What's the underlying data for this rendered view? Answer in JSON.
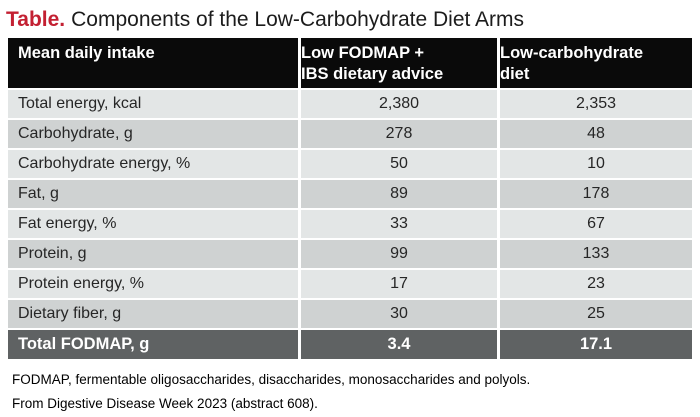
{
  "title": {
    "prefix": "Table.",
    "text": "Components of the Low-Carbohydrate Diet Arms"
  },
  "header": {
    "col1": "Mean daily intake",
    "col2_line1": "Low FODMAP +",
    "col2_line2": "IBS dietary advice",
    "col3_line1": "Low-carbohydrate",
    "col3_line2": "diet"
  },
  "chart_data": {
    "type": "table",
    "title": "Table. Components of the Low-Carbohydrate Diet Arms",
    "columns": [
      "Mean daily intake",
      "Low FODMAP + IBS dietary advice",
      "Low-carbohydrate diet"
    ],
    "rows": [
      {
        "label": "Total energy, kcal",
        "low_fodmap": "2,380",
        "low_carb": "2,353"
      },
      {
        "label": "Carbohydrate, g",
        "low_fodmap": "278",
        "low_carb": "48"
      },
      {
        "label": "Carbohydrate energy, %",
        "low_fodmap": "50",
        "low_carb": "10"
      },
      {
        "label": "Fat, g",
        "low_fodmap": "89",
        "low_carb": "178"
      },
      {
        "label": "Fat energy, %",
        "low_fodmap": "33",
        "low_carb": "67"
      },
      {
        "label": "Protein, g",
        "low_fodmap": "99",
        "low_carb": "133"
      },
      {
        "label": "Protein energy, %",
        "low_fodmap": "17",
        "low_carb": "23"
      },
      {
        "label": "Dietary fiber, g",
        "low_fodmap": "30",
        "low_carb": "25"
      }
    ],
    "total_row": {
      "label": "Total FODMAP, g",
      "low_fodmap": "3.4",
      "low_carb": "17.1"
    }
  },
  "footnotes": [
    "FODMAP, fermentable oligosaccharides, disaccharides, monosaccharides and polyols.",
    "From Digestive Disease Week 2023 (abstract 608)."
  ],
  "colors": {
    "accent_red": "#c32032",
    "header_bg": "#0a0a0a",
    "header_text": "#ffffff",
    "row_light": "#e3e6e6",
    "row_dark": "#cfd2d2",
    "total_row_bg": "#5f6263",
    "total_row_text": "#ffffff",
    "body_text": "#262626"
  }
}
